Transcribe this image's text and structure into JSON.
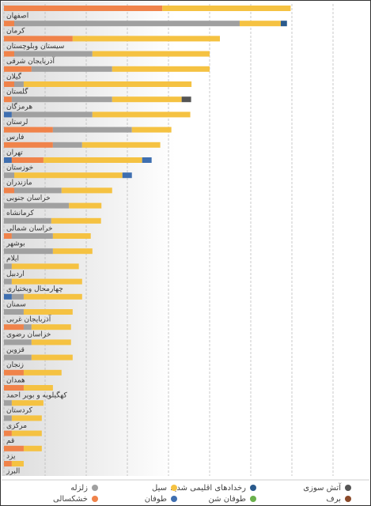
{
  "chart_data": {
    "type": "stacked-barh",
    "xlim": [
      0,
      85
    ],
    "xticks": [
      0,
      10,
      20,
      30,
      40,
      50,
      60,
      70,
      80
    ],
    "grid": true,
    "legend": [
      {
        "name": "آتش سوزی",
        "color": "#555555"
      },
      {
        "name": "رخدادهای اقلیمی شدید",
        "color": "#2a5a8c"
      },
      {
        "name": "سیل",
        "color": "#f5c242"
      },
      {
        "name": "زلزله",
        "color": "#a0a0a0"
      },
      {
        "name": "برف",
        "color": "#8b4a2a"
      },
      {
        "name": "طوفان شن",
        "color": "#6ab04c"
      },
      {
        "name": "طوفان",
        "color": "#3f6fb0"
      },
      {
        "name": "خشکسالی",
        "color": "#f0834a"
      }
    ],
    "bars": [
      {
        "label": "اصفهان",
        "segments": [
          {
            "color": "#f0834a",
            "value": 38.5
          },
          {
            "color": "#f5c242",
            "value": 31.2
          }
        ]
      },
      {
        "label": "کرمان",
        "segments": [
          {
            "color": "#f0834a",
            "value": 2.5
          },
          {
            "color": "#a0a0a0",
            "value": 54.8
          },
          {
            "color": "#f5c242",
            "value": 10
          },
          {
            "color": "#2a5a8c",
            "value": 1.5
          }
        ]
      },
      {
        "label": "سیستان وبلوچستان",
        "segments": [
          {
            "color": "#f0834a",
            "value": 16.7
          },
          {
            "color": "#f5c242",
            "value": 35.8
          }
        ]
      },
      {
        "label": "آذربایجان شرقی",
        "segments": [
          {
            "color": "#f0834a",
            "value": 2.5
          },
          {
            "color": "#a0a0a0",
            "value": 19
          },
          {
            "color": "#f5c242",
            "value": 28.5
          }
        ]
      },
      {
        "label": "گیلان",
        "segments": [
          {
            "color": "#f0834a",
            "value": 6.7
          },
          {
            "color": "#a0a0a0",
            "value": 19.6
          },
          {
            "color": "#f5c242",
            "value": 23.7
          }
        ]
      },
      {
        "label": "گلستان",
        "segments": [
          {
            "color": "#f0834a",
            "value": 2.5
          },
          {
            "color": "#a0a0a0",
            "value": 2.3
          },
          {
            "color": "#f5c242",
            "value": 40.8
          }
        ]
      },
      {
        "label": "هرمزگان",
        "segments": [
          {
            "color": "#f0834a",
            "value": 1.9
          },
          {
            "color": "#a0a0a0",
            "value": 24.4
          },
          {
            "color": "#f5c242",
            "value": 16.9
          },
          {
            "color": "#555555",
            "value": 2.3
          }
        ]
      },
      {
        "label": "لرستان",
        "segments": [
          {
            "color": "#3f6fb0",
            "value": 1.9
          },
          {
            "color": "#a0a0a0",
            "value": 19.6
          },
          {
            "color": "#f5c242",
            "value": 23.8
          }
        ]
      },
      {
        "label": "فارس",
        "segments": [
          {
            "color": "#f0834a",
            "value": 11.9
          },
          {
            "color": "#a0a0a0",
            "value": 19.2
          },
          {
            "color": "#f5c242",
            "value": 9.6
          }
        ]
      },
      {
        "label": "تهران",
        "segments": [
          {
            "color": "#f0834a",
            "value": 11.9
          },
          {
            "color": "#a0a0a0",
            "value": 7.1
          },
          {
            "color": "#f5c242",
            "value": 19
          }
        ]
      },
      {
        "label": "خوزستان",
        "segments": [
          {
            "color": "#3f6fb0",
            "value": 1.9
          },
          {
            "color": "#f0834a",
            "value": 7.7
          },
          {
            "color": "#f5c242",
            "value": 24
          },
          {
            "color": "#3f6fb0",
            "value": 2.3
          }
        ]
      },
      {
        "label": "مازندران",
        "segments": [
          {
            "color": "#a0a0a0",
            "value": 2.5
          },
          {
            "color": "#f5c242",
            "value": 26.3
          },
          {
            "color": "#3f6fb0",
            "value": 2.3
          }
        ]
      },
      {
        "label": "خراسان جنوبی",
        "segments": [
          {
            "color": "#f0834a",
            "value": 2.5
          },
          {
            "color": "#a0a0a0",
            "value": 11.5
          },
          {
            "color": "#f5c242",
            "value": 12.3
          }
        ]
      },
      {
        "label": "کرمانشاه",
        "segments": [
          {
            "color": "#a0a0a0",
            "value": 15.8
          },
          {
            "color": "#f5c242",
            "value": 7.9
          }
        ]
      },
      {
        "label": "خراسان شمالی",
        "segments": [
          {
            "color": "#a0a0a0",
            "value": 11.5
          },
          {
            "color": "#f5c242",
            "value": 12.1
          }
        ]
      },
      {
        "label": "بوشهر",
        "segments": [
          {
            "color": "#f0834a",
            "value": 1.9
          },
          {
            "color": "#a0a0a0",
            "value": 10
          },
          {
            "color": "#f5c242",
            "value": 9.2
          }
        ]
      },
      {
        "label": "ایلام",
        "segments": [
          {
            "color": "#a0a0a0",
            "value": 11.9
          },
          {
            "color": "#f5c242",
            "value": 9.6
          }
        ]
      },
      {
        "label": "اردبیل",
        "segments": [
          {
            "color": "#a0a0a0",
            "value": 1.9
          },
          {
            "color": "#f5c242",
            "value": 16.3
          }
        ]
      },
      {
        "label": "چهارمحال وبختیاری",
        "segments": [
          {
            "color": "#a0a0a0",
            "value": 1.9
          },
          {
            "color": "#f5c242",
            "value": 17.1
          }
        ]
      },
      {
        "label": "سمنان",
        "segments": [
          {
            "color": "#3f6fb0",
            "value": 1.9
          },
          {
            "color": "#a0a0a0",
            "value": 2.9
          },
          {
            "color": "#f5c242",
            "value": 14.2
          }
        ]
      },
      {
        "label": "آذربایجان غربی",
        "segments": [
          {
            "color": "#a0a0a0",
            "value": 4.8
          },
          {
            "color": "#f5c242",
            "value": 11.9
          }
        ]
      },
      {
        "label": "خراسان رضوی",
        "segments": [
          {
            "color": "#f0834a",
            "value": 4.8
          },
          {
            "color": "#a0a0a0",
            "value": 1.9
          },
          {
            "color": "#f5c242",
            "value": 9.6
          }
        ]
      },
      {
        "label": "قزوین",
        "segments": [
          {
            "color": "#a0a0a0",
            "value": 6.7
          },
          {
            "color": "#f5c242",
            "value": 9.6
          }
        ]
      },
      {
        "label": "زنجان",
        "segments": [
          {
            "color": "#a0a0a0",
            "value": 6.7
          },
          {
            "color": "#f5c242",
            "value": 10
          }
        ]
      },
      {
        "label": "همدان",
        "segments": [
          {
            "color": "#f0834a",
            "value": 4.8
          },
          {
            "color": "#f5c242",
            "value": 9.2
          }
        ]
      },
      {
        "label": "کهگیلویه و بویر احمد",
        "segments": [
          {
            "color": "#f0834a",
            "value": 4.8
          },
          {
            "color": "#f5c242",
            "value": 7.1
          }
        ]
      },
      {
        "label": "کردستان",
        "segments": [
          {
            "color": "#a0a0a0",
            "value": 1.9
          },
          {
            "color": "#f5c242",
            "value": 7.7
          }
        ]
      },
      {
        "label": "مرکزی",
        "segments": [
          {
            "color": "#a0a0a0",
            "value": 1.9
          },
          {
            "color": "#f5c242",
            "value": 7.3
          }
        ]
      },
      {
        "label": "قم",
        "segments": [
          {
            "color": "#f0834a",
            "value": 1.9
          },
          {
            "color": "#f5c242",
            "value": 7.3
          }
        ]
      },
      {
        "label": "یزد",
        "segments": [
          {
            "color": "#f0834a",
            "value": 4.8
          },
          {
            "color": "#f5c242",
            "value": 4.4
          }
        ]
      },
      {
        "label": "البرز",
        "segments": [
          {
            "color": "#f0834a",
            "value": 1.9
          },
          {
            "color": "#f5c242",
            "value": 2.9
          }
        ]
      }
    ]
  }
}
